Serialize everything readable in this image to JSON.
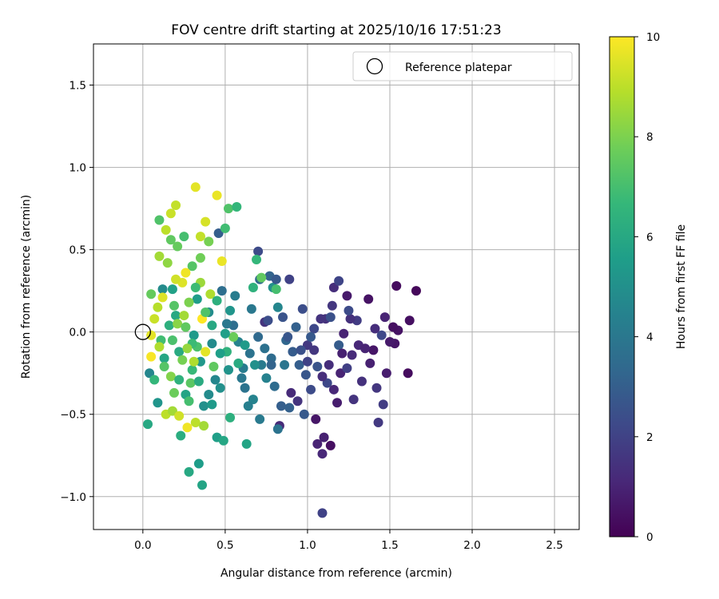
{
  "chart_data": {
    "type": "scatter",
    "title": "FOV centre drift starting at 2025/10/16 17:51:23",
    "xlabel": "Angular distance from reference (arcmin)",
    "ylabel": "Rotation from reference (arcmin)",
    "xlim": [
      -0.3,
      2.65
    ],
    "ylim": [
      -1.2,
      1.75
    ],
    "xticks": [
      0.0,
      0.5,
      1.0,
      1.5,
      2.0,
      2.5
    ],
    "xtick_labels": [
      "0.0",
      "0.5",
      "1.0",
      "1.5",
      "2.0",
      "2.5"
    ],
    "yticks": [
      -1.0,
      -0.5,
      0.0,
      0.5,
      1.0,
      1.5
    ],
    "ytick_labels": [
      "−1.0",
      "−0.5",
      "0.0",
      "0.5",
      "1.0",
      "1.5"
    ],
    "grid": true,
    "legend": {
      "label": "Reference platepar",
      "placement": "top-right"
    },
    "reference_point": {
      "x": 0.0,
      "y": 0.0
    },
    "colorbar": {
      "label": "Hours from first FF file",
      "range": [
        0,
        10
      ],
      "ticks": [
        0,
        2,
        4,
        6,
        8,
        10
      ],
      "tick_labels": [
        "0",
        "2",
        "4",
        "6",
        "8",
        "10"
      ],
      "colormap": "viridis"
    },
    "colormap_stops": [
      "#440154",
      "#482878",
      "#3e4989",
      "#31688e",
      "#26828e",
      "#1f9e89",
      "#35b779",
      "#6ece58",
      "#b5de2b",
      "#fde725"
    ],
    "points": [
      [
        1.66,
        0.25,
        0.2
      ],
      [
        1.62,
        0.07,
        0.4
      ],
      [
        1.54,
        0.28,
        0.3
      ],
      [
        1.55,
        0.01,
        0.5
      ],
      [
        1.53,
        -0.07,
        0.6
      ],
      [
        1.47,
        0.09,
        1.0
      ],
      [
        1.48,
        -0.25,
        0.8
      ],
      [
        1.61,
        -0.25,
        0.3
      ],
      [
        1.4,
        -0.11,
        0.6
      ],
      [
        1.37,
        0.2,
        0.5
      ],
      [
        1.38,
        -0.19,
        0.9
      ],
      [
        1.31,
        -0.08,
        1.1
      ],
      [
        1.27,
        -0.14,
        1.2
      ],
      [
        1.22,
        -0.01,
        1.0
      ],
      [
        1.24,
        0.22,
        0.7
      ],
      [
        1.2,
        -0.25,
        1.0
      ],
      [
        1.18,
        -0.43,
        0.8
      ],
      [
        1.14,
        -0.69,
        0.4
      ],
      [
        1.1,
        -0.64,
        0.9
      ],
      [
        1.09,
        -1.1,
        2.0
      ],
      [
        1.05,
        -0.53,
        0.6
      ],
      [
        1.09,
        -0.74,
        1.1
      ],
      [
        1.13,
        -0.2,
        1.3
      ],
      [
        1.11,
        0.08,
        1.4
      ],
      [
        1.16,
        0.27,
        1.3
      ],
      [
        1.15,
        0.16,
        1.6
      ],
      [
        1.19,
        0.31,
        2.1
      ],
      [
        0.97,
        0.14,
        2.4
      ],
      [
        1.04,
        0.02,
        2.2
      ],
      [
        1.0,
        -0.08,
        1.7
      ],
      [
        0.99,
        -0.26,
        2.7
      ],
      [
        0.95,
        -0.2,
        3.0
      ],
      [
        0.94,
        -0.42,
        1.5
      ],
      [
        0.9,
        -0.37,
        1.2
      ],
      [
        0.89,
        0.32,
        2.0
      ],
      [
        0.84,
        -0.45,
        3.0
      ],
      [
        0.87,
        -0.05,
        3.3
      ],
      [
        0.83,
        -0.57,
        1.2
      ],
      [
        0.78,
        -0.16,
        3.5
      ],
      [
        0.74,
        -0.1,
        3.7
      ],
      [
        0.7,
        0.49,
        2.3
      ],
      [
        0.74,
        0.06,
        1.5
      ],
      [
        0.77,
        0.34,
        3.2
      ],
      [
        0.79,
        0.27,
        5.0
      ],
      [
        0.71,
        0.32,
        3.4
      ],
      [
        0.66,
        0.14,
        4.0
      ],
      [
        0.62,
        -0.34,
        3.8
      ],
      [
        0.61,
        -0.22,
        4.2
      ],
      [
        0.58,
        -0.06,
        4.5
      ],
      [
        0.55,
        0.04,
        3.6
      ],
      [
        0.51,
        0.05,
        4.0
      ],
      [
        0.48,
        0.25,
        3.6
      ],
      [
        0.46,
        0.6,
        3.0
      ],
      [
        0.44,
        -0.29,
        4.6
      ],
      [
        0.42,
        -0.07,
        4.8
      ],
      [
        0.4,
        0.12,
        4.9
      ],
      [
        0.37,
        -0.45,
        5.0
      ],
      [
        0.35,
        -0.18,
        5.3
      ],
      [
        0.33,
        0.2,
        5.5
      ],
      [
        0.31,
        -0.02,
        5.4
      ],
      [
        0.28,
        -0.85,
        6.0
      ],
      [
        0.34,
        -0.8,
        5.5
      ],
      [
        0.36,
        -0.93,
        5.8
      ],
      [
        0.23,
        -0.63,
        6.2
      ],
      [
        0.26,
        -0.38,
        5.8
      ],
      [
        0.22,
        -0.12,
        6.1
      ],
      [
        0.2,
        0.1,
        6.0
      ],
      [
        0.18,
        0.26,
        5.7
      ],
      [
        0.13,
        -0.16,
        5.9
      ],
      [
        0.12,
        0.26,
        4.8
      ],
      [
        0.04,
        -0.25,
        4.6
      ],
      [
        0.03,
        -0.56,
        6.0
      ],
      [
        0.09,
        -0.43,
        5.2
      ],
      [
        0.07,
        -0.29,
        6.6
      ],
      [
        0.11,
        -0.05,
        6.9
      ],
      [
        0.1,
        0.68,
        7.2
      ],
      [
        0.17,
        0.56,
        7.5
      ],
      [
        0.21,
        0.52,
        7.6
      ],
      [
        0.25,
        0.58,
        7.0
      ],
      [
        0.3,
        0.4,
        7.3
      ],
      [
        0.35,
        0.45,
        7.8
      ],
      [
        0.4,
        0.55,
        7.9
      ],
      [
        0.5,
        0.63,
        6.9
      ],
      [
        0.52,
        0.75,
        7.2
      ],
      [
        0.57,
        0.76,
        6.6
      ],
      [
        0.1,
        0.46,
        8.6
      ],
      [
        0.14,
        0.62,
        9.0
      ],
      [
        0.17,
        0.72,
        9.2
      ],
      [
        0.2,
        0.77,
        9.1
      ],
      [
        0.32,
        0.88,
        9.6
      ],
      [
        0.38,
        0.67,
        9.4
      ],
      [
        0.45,
        0.83,
        9.7
      ],
      [
        0.35,
        0.58,
        9.1
      ],
      [
        0.48,
        0.43,
        9.7
      ],
      [
        0.15,
        0.42,
        8.3
      ],
      [
        0.05,
        0.23,
        7.6
      ],
      [
        0.09,
        0.15,
        8.9
      ],
      [
        0.12,
        0.21,
        9.5
      ],
      [
        0.07,
        0.08,
        9.2
      ],
      [
        0.05,
        -0.02,
        9.6
      ],
      [
        0.05,
        -0.15,
        9.9
      ],
      [
        0.1,
        -0.09,
        8.8
      ],
      [
        0.13,
        -0.21,
        7.3
      ],
      [
        0.14,
        -0.5,
        9.0
      ],
      [
        0.18,
        -0.48,
        8.6
      ],
      [
        0.22,
        -0.51,
        9.3
      ],
      [
        0.27,
        -0.58,
        9.8
      ],
      [
        0.32,
        -0.55,
        9.0
      ],
      [
        0.37,
        -0.57,
        8.6
      ],
      [
        0.38,
        -0.12,
        9.6
      ],
      [
        0.36,
        0.08,
        10.0
      ],
      [
        0.41,
        0.23,
        8.8
      ],
      [
        0.26,
        0.36,
        9.8
      ],
      [
        0.24,
        0.3,
        9.5
      ],
      [
        0.2,
        0.32,
        9.3
      ],
      [
        0.17,
        -0.27,
        8.1
      ],
      [
        0.29,
        -0.31,
        7.4
      ],
      [
        0.33,
        -0.09,
        7.1
      ],
      [
        0.43,
        -0.21,
        7.5
      ],
      [
        0.51,
        -0.12,
        6.4
      ],
      [
        0.55,
        -0.03,
        7.7
      ],
      [
        0.58,
        -0.19,
        6.1
      ],
      [
        0.53,
        -0.52,
        6.3
      ],
      [
        0.45,
        -0.64,
        5.6
      ],
      [
        0.49,
        -0.66,
        5.9
      ],
      [
        0.63,
        -0.68,
        5.8
      ],
      [
        0.67,
        -0.41,
        4.5
      ],
      [
        0.71,
        -0.53,
        4.1
      ],
      [
        0.64,
        -0.45,
        4.3
      ],
      [
        0.82,
        -0.59,
        3.8
      ],
      [
        0.89,
        -0.46,
        3.1
      ],
      [
        0.98,
        -0.5,
        2.8
      ],
      [
        1.02,
        -0.35,
        2.3
      ],
      [
        1.06,
        -0.21,
        2.6
      ],
      [
        1.12,
        -0.31,
        2.2
      ],
      [
        1.28,
        -0.41,
        1.5
      ],
      [
        1.24,
        -0.22,
        1.9
      ],
      [
        1.33,
        -0.3,
        1.4
      ],
      [
        1.42,
        -0.34,
        1.6
      ],
      [
        1.43,
        -0.55,
        1.7
      ],
      [
        1.46,
        -0.44,
        1.8
      ],
      [
        1.45,
        -0.02,
        2.2
      ],
      [
        1.3,
        0.07,
        1.8
      ],
      [
        1.26,
        0.08,
        1.4
      ],
      [
        1.25,
        0.13,
        2.3
      ],
      [
        1.19,
        -0.08,
        2.9
      ],
      [
        1.14,
        0.09,
        2.5
      ],
      [
        1.08,
        0.08,
        1.5
      ],
      [
        1.02,
        -0.03,
        2.8
      ],
      [
        0.93,
        0.03,
        3.1
      ],
      [
        0.91,
        -0.12,
        2.9
      ],
      [
        0.85,
        0.09,
        2.6
      ],
      [
        0.81,
        0.32,
        2.8
      ],
      [
        0.76,
        0.07,
        2.4
      ],
      [
        0.72,
        -0.2,
        4.1
      ],
      [
        0.67,
        0.27,
        6.4
      ],
      [
        0.69,
        0.44,
        6.6
      ],
      [
        0.72,
        0.33,
        7.5
      ],
      [
        0.81,
        0.26,
        7.0
      ],
      [
        0.82,
        0.15,
        4.6
      ],
      [
        0.86,
        -0.2,
        3.9
      ],
      [
        0.8,
        -0.33,
        3.5
      ],
      [
        0.75,
        -0.28,
        4.4
      ],
      [
        0.68,
        -0.2,
        5.0
      ],
      [
        0.62,
        -0.08,
        5.4
      ],
      [
        0.56,
        0.22,
        4.2
      ],
      [
        0.53,
        0.13,
        5.2
      ],
      [
        0.5,
        -0.01,
        5.6
      ],
      [
        0.47,
        -0.34,
        5.0
      ],
      [
        0.42,
        -0.44,
        5.4
      ],
      [
        0.4,
        -0.38,
        4.8
      ],
      [
        0.34,
        -0.3,
        6.1
      ],
      [
        0.3,
        -0.23,
        6.7
      ],
      [
        0.28,
        -0.42,
        7.0
      ],
      [
        0.22,
        -0.29,
        6.4
      ],
      [
        0.19,
        -0.37,
        7.7
      ],
      [
        0.18,
        -0.05,
        7.1
      ],
      [
        0.16,
        0.04,
        6.3
      ],
      [
        0.19,
        0.16,
        7.3
      ],
      [
        0.21,
        0.05,
        8.2
      ],
      [
        0.25,
        0.1,
        8.6
      ],
      [
        0.28,
        0.18,
        8.0
      ],
      [
        0.26,
        0.03,
        7.5
      ],
      [
        0.3,
        -0.07,
        6.8
      ],
      [
        0.24,
        -0.17,
        7.9
      ],
      [
        0.27,
        -0.1,
        8.4
      ],
      [
        0.31,
        -0.18,
        8.8
      ],
      [
        0.35,
        0.3,
        8.5
      ],
      [
        0.38,
        0.12,
        7.2
      ],
      [
        0.32,
        0.27,
        6.8
      ],
      [
        0.42,
        0.04,
        6.0
      ],
      [
        0.45,
        0.19,
        6.3
      ],
      [
        0.47,
        -0.13,
        5.6
      ],
      [
        0.52,
        -0.23,
        5.1
      ],
      [
        0.6,
        -0.28,
        4.0
      ],
      [
        0.65,
        -0.13,
        3.8
      ],
      [
        0.7,
        -0.03,
        3.4
      ],
      [
        0.78,
        -0.2,
        3.2
      ],
      [
        0.88,
        -0.03,
        2.7
      ],
      [
        0.96,
        -0.11,
        2.5
      ],
      [
        1.0,
        -0.18,
        2.0
      ],
      [
        1.04,
        -0.11,
        1.6
      ],
      [
        1.09,
        -0.27,
        1.3
      ],
      [
        1.16,
        -0.35,
        1.1
      ],
      [
        1.21,
        -0.13,
        0.9
      ],
      [
        1.35,
        -0.1,
        1.0
      ],
      [
        1.41,
        0.02,
        1.3
      ],
      [
        1.5,
        -0.06,
        0.7
      ],
      [
        1.52,
        0.03,
        0.4
      ],
      [
        1.06,
        -0.68,
        1.0
      ]
    ]
  }
}
